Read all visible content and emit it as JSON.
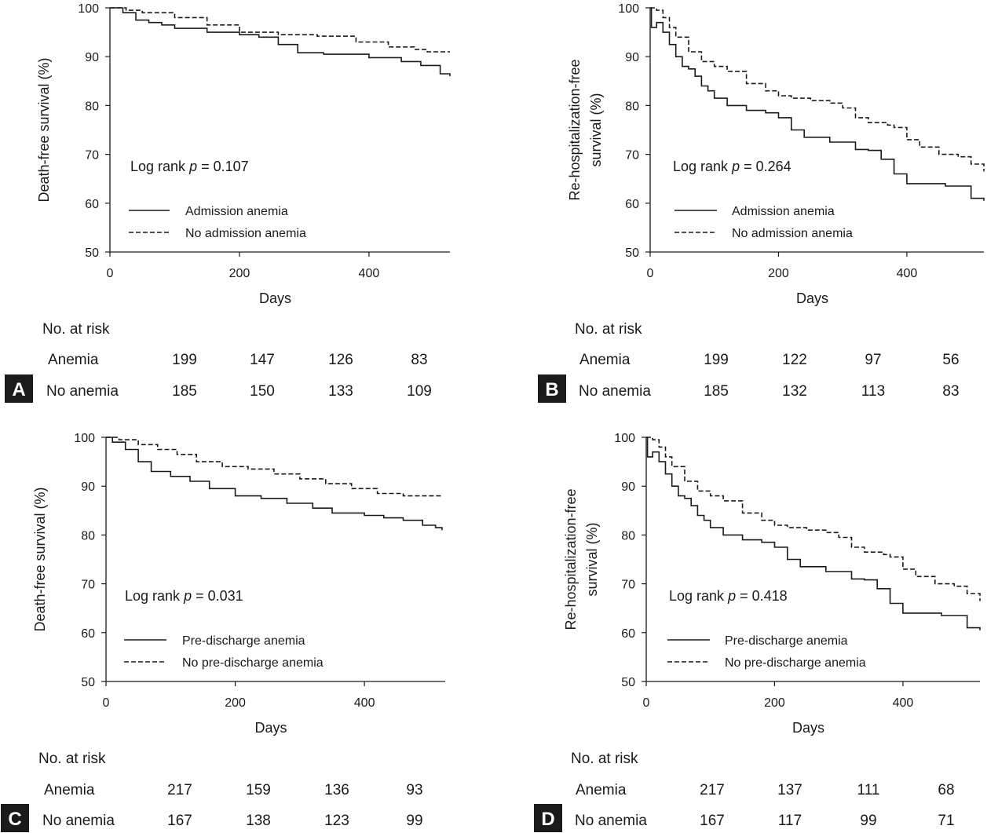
{
  "chart_data": [
    {
      "panel_label": "A",
      "type": "line",
      "title": "",
      "xlabel": "Days",
      "ylabel": "Death-free survival (%)",
      "xlim": [
        0,
        525
      ],
      "ylim": [
        50,
        100
      ],
      "xticks": [
        0,
        200,
        400
      ],
      "yticks": [
        50,
        60,
        70,
        80,
        90,
        100
      ],
      "annotation_prefix": "Log rank ",
      "annotation_p": "p",
      "annotation_value": " = 0.107",
      "series": [
        {
          "name": "Admission anemia",
          "style": "solid",
          "x": [
            0,
            20,
            40,
            60,
            80,
            100,
            150,
            200,
            230,
            260,
            290,
            330,
            400,
            450,
            480,
            510,
            525
          ],
          "y": [
            100,
            99,
            97.5,
            97,
            96.5,
            95.8,
            95,
            94.5,
            94,
            92.5,
            90.8,
            90.5,
            89.8,
            89,
            88.2,
            86.5,
            86
          ]
        },
        {
          "name": "No admission anemia",
          "style": "dashed",
          "x": [
            0,
            25,
            50,
            100,
            150,
            200,
            260,
            320,
            380,
            430,
            470,
            490,
            525
          ],
          "y": [
            100,
            99.5,
            99,
            98,
            96.5,
            95,
            94.5,
            94.2,
            93,
            92,
            91.5,
            91,
            91
          ]
        }
      ],
      "risk_table": {
        "header": "No. at risk",
        "rows": [
          {
            "label": "Anemia",
            "values": [
              "199",
              "147",
              "126",
              "83"
            ]
          },
          {
            "label": "No anemia",
            "values": [
              "185",
              "150",
              "133",
              "109"
            ]
          }
        ]
      }
    },
    {
      "panel_label": "B",
      "type": "line",
      "title": "",
      "xlabel": "Days",
      "ylabel_lines": [
        "Re-hospitalization-free",
        "survival (%)"
      ],
      "xlim": [
        0,
        520
      ],
      "ylim": [
        50,
        100
      ],
      "xticks": [
        0,
        200,
        400
      ],
      "yticks": [
        50,
        60,
        70,
        80,
        90,
        100
      ],
      "annotation_prefix": "Log rank ",
      "annotation_p": "p",
      "annotation_value": " = 0.264",
      "series": [
        {
          "name": "Admission anemia",
          "style": "solid",
          "x": [
            0,
            2,
            10,
            20,
            30,
            40,
            50,
            60,
            70,
            80,
            90,
            100,
            120,
            150,
            180,
            200,
            220,
            240,
            280,
            320,
            340,
            360,
            380,
            400,
            430,
            460,
            500,
            520
          ],
          "y": [
            100,
            96,
            97,
            95,
            92.5,
            90,
            88,
            87.5,
            86,
            84,
            83,
            81.5,
            80,
            79,
            78.5,
            77.5,
            75,
            73.5,
            72.5,
            71,
            70.8,
            69,
            66,
            64,
            64,
            63.5,
            61,
            60.5
          ]
        },
        {
          "name": "No admission anemia",
          "style": "dashed",
          "x": [
            0,
            10,
            20,
            30,
            40,
            60,
            80,
            100,
            120,
            150,
            180,
            200,
            220,
            250,
            280,
            300,
            320,
            340,
            370,
            380,
            400,
            420,
            450,
            480,
            500,
            520
          ],
          "y": [
            100,
            99.5,
            98,
            96,
            94,
            91,
            89,
            88,
            87,
            84.5,
            83,
            82,
            81.5,
            81,
            80.5,
            79.5,
            77.5,
            76.5,
            76,
            75.5,
            73,
            71.5,
            70,
            69.5,
            68,
            66.5
          ]
        }
      ],
      "risk_table": {
        "header": "No. at risk",
        "rows": [
          {
            "label": "Anemia",
            "values": [
              "199",
              "122",
              "97",
              "56"
            ]
          },
          {
            "label": "No anemia",
            "values": [
              "185",
              "132",
              "113",
              "83"
            ]
          }
        ]
      }
    },
    {
      "panel_label": "C",
      "type": "line",
      "title": "",
      "xlabel": "Days",
      "ylabel": "Death-free survival (%)",
      "xlim": [
        0,
        525
      ],
      "ylim": [
        50,
        100
      ],
      "xticks": [
        0,
        200,
        400
      ],
      "yticks": [
        50,
        60,
        70,
        80,
        90,
        100
      ],
      "annotation_prefix": "Log rank ",
      "annotation_p": "p",
      "annotation_value": " = 0.031",
      "series": [
        {
          "name": "Pre-discharge anemia",
          "style": "solid",
          "x": [
            0,
            10,
            30,
            50,
            70,
            100,
            130,
            160,
            200,
            240,
            280,
            320,
            350,
            400,
            430,
            460,
            490,
            510,
            520
          ],
          "y": [
            100,
            99,
            97.5,
            95,
            93,
            92,
            91,
            89.5,
            88,
            87.5,
            86.5,
            85.5,
            84.5,
            84,
            83.5,
            83,
            82,
            81.5,
            81
          ]
        },
        {
          "name": "No pre-discharge anemia",
          "style": "dashed",
          "x": [
            0,
            20,
            50,
            80,
            110,
            140,
            180,
            220,
            260,
            300,
            340,
            380,
            420,
            460,
            520
          ],
          "y": [
            100,
            99.5,
            98.5,
            97.5,
            96.5,
            95,
            94,
            93.5,
            92.5,
            91.5,
            90.5,
            89.5,
            88.5,
            88,
            88
          ]
        }
      ],
      "risk_table": {
        "header": "No. at risk",
        "rows": [
          {
            "label": "Anemia",
            "values": [
              "217",
              "159",
              "136",
              "93"
            ]
          },
          {
            "label": "No anemia",
            "values": [
              "167",
              "138",
              "123",
              "99"
            ]
          }
        ]
      }
    },
    {
      "panel_label": "D",
      "type": "line",
      "title": "",
      "xlabel": "Days",
      "ylabel_lines": [
        "Re-hospitalization-free",
        "survival (%)"
      ],
      "xlim": [
        0,
        520
      ],
      "ylim": [
        50,
        100
      ],
      "xticks": [
        0,
        200,
        400
      ],
      "yticks": [
        50,
        60,
        70,
        80,
        90,
        100
      ],
      "annotation_prefix": "Log rank ",
      "annotation_p": "p",
      "annotation_value": " = 0.418",
      "series": [
        {
          "name": "Pre-discharge anemia",
          "style": "solid",
          "x": [
            0,
            2,
            10,
            20,
            30,
            40,
            50,
            60,
            70,
            80,
            90,
            100,
            120,
            150,
            180,
            200,
            220,
            240,
            280,
            320,
            340,
            360,
            380,
            400,
            430,
            460,
            500,
            520
          ],
          "y": [
            100,
            96,
            97,
            95,
            92.5,
            90,
            88,
            87.5,
            86,
            84,
            83,
            81.5,
            80,
            79,
            78.5,
            77.5,
            75,
            73.5,
            72.5,
            71,
            70.8,
            69,
            66,
            64,
            64,
            63.5,
            61,
            60.5
          ]
        },
        {
          "name": "No pre-discharge anemia",
          "style": "dashed",
          "x": [
            0,
            10,
            20,
            30,
            40,
            60,
            80,
            100,
            120,
            150,
            180,
            200,
            220,
            250,
            280,
            300,
            320,
            340,
            370,
            380,
            400,
            420,
            450,
            480,
            500,
            520
          ],
          "y": [
            100,
            99.5,
            98,
            96,
            94,
            91,
            89,
            88,
            87,
            84.5,
            83,
            82,
            81.5,
            81,
            80.5,
            79.5,
            77.5,
            76.5,
            76,
            75.5,
            73,
            71.5,
            70,
            69.5,
            68,
            66.5
          ]
        }
      ],
      "risk_table": {
        "header": "No. at risk",
        "rows": [
          {
            "label": "Anemia",
            "values": [
              "217",
              "137",
              "111",
              "68"
            ]
          },
          {
            "label": "No anemia",
            "values": [
              "167",
              "117",
              "99",
              "71"
            ]
          }
        ]
      }
    }
  ]
}
